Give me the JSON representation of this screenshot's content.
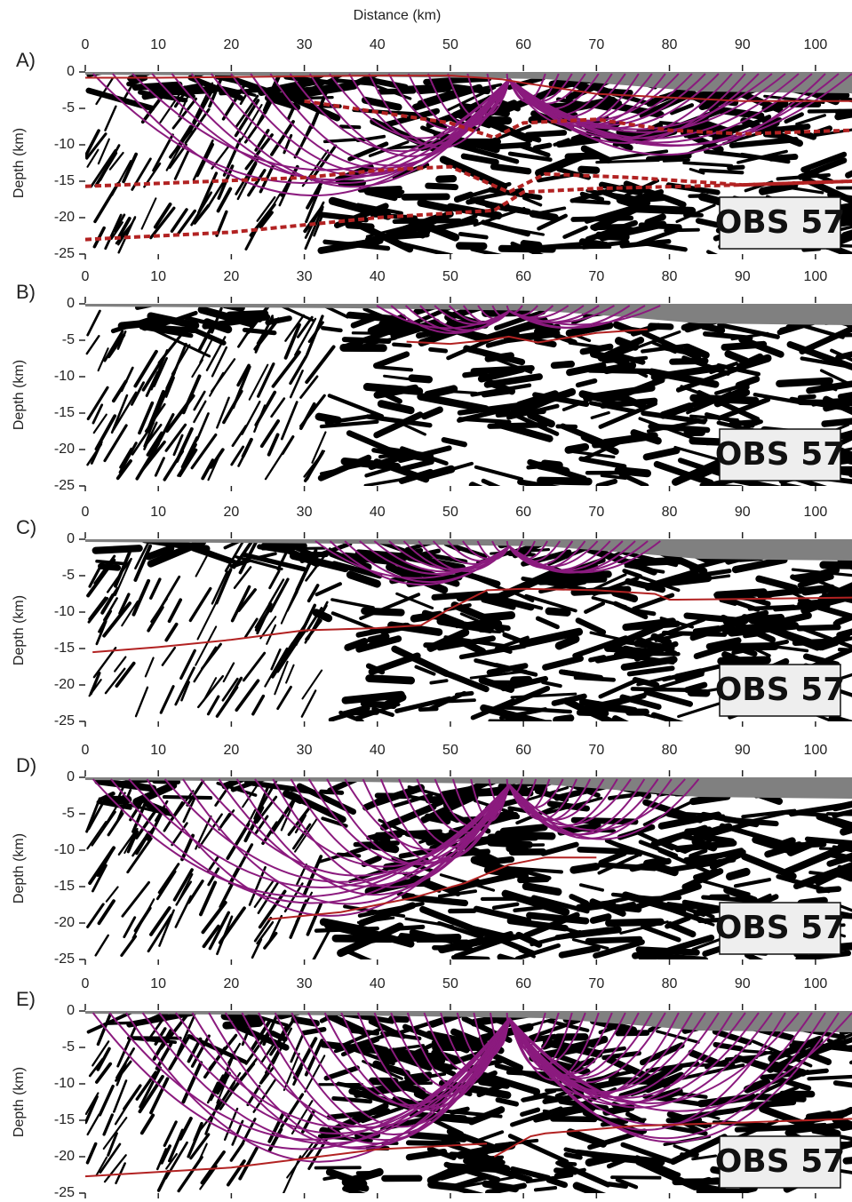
{
  "chart_data": [
    {
      "type": "line",
      "title": "Distance (km)",
      "panel_label": "A)",
      "ylabel": "Depth (km)",
      "box_label": "OBS 57",
      "xlim": [
        0,
        105
      ],
      "xticks": [
        0,
        10,
        20,
        30,
        40,
        50,
        60,
        70,
        80,
        90,
        100
      ],
      "ylim": [
        -25,
        0
      ],
      "yticks": [
        0,
        -5,
        -10,
        -15,
        -20,
        -25
      ],
      "series": [
        {
          "color": "#b22222",
          "dashed": false,
          "x": [
            0,
            10,
            20,
            30,
            40,
            50,
            57,
            60,
            70,
            80,
            90,
            105
          ],
          "values": [
            -0.8,
            -0.8,
            -0.7,
            -0.6,
            -0.5,
            -0.5,
            -1,
            -1.5,
            -3,
            -3.5,
            -4,
            -4
          ]
        },
        {
          "color": "#b22222",
          "dashed": true,
          "x": [
            30,
            40,
            50,
            56,
            60,
            70,
            80,
            90,
            105
          ],
          "values": [
            -4,
            -5.5,
            -7,
            -9,
            -7,
            -6.5,
            -8,
            -8.5,
            -8
          ]
        },
        {
          "color": "#b22222",
          "dashed": true,
          "x": [
            0,
            30,
            40,
            50,
            58,
            63,
            75,
            90,
            105
          ],
          "values": [
            -15.7,
            -14.5,
            -13.5,
            -13,
            -16.5,
            -14,
            -14.5,
            -15.5,
            -15
          ]
        },
        {
          "color": "#b22222",
          "dashed": true,
          "x": [
            0,
            20,
            40,
            56,
            60,
            70,
            90,
            105
          ],
          "values": [
            -23,
            -22,
            -20,
            -19,
            -16.5,
            -16,
            -15.5,
            -15
          ]
        }
      ]
    },
    {
      "type": "line",
      "panel_label": "B)",
      "ylabel": "Depth (km)",
      "box_label": "OBS 57",
      "xlim": [
        0,
        105
      ],
      "xticks": [
        0,
        10,
        20,
        30,
        40,
        50,
        60,
        70,
        80,
        90,
        100
      ],
      "ylim": [
        -25,
        0
      ],
      "yticks": [
        0,
        -5,
        -10,
        -15,
        -20,
        -25
      ],
      "series": [
        {
          "color": "#b22222",
          "dashed": false,
          "x": [
            44,
            50,
            55,
            58,
            62,
            70,
            77
          ],
          "values": [
            -5.2,
            -5.5,
            -5,
            -4.5,
            -5.3,
            -4,
            -3.5
          ]
        }
      ]
    },
    {
      "type": "line",
      "panel_label": "C)",
      "ylabel": "Depth (km)",
      "box_label": "OBS 57",
      "xlim": [
        0,
        105
      ],
      "xticks": [
        0,
        10,
        20,
        30,
        40,
        50,
        60,
        70,
        80,
        90,
        100
      ],
      "ylim": [
        -25,
        0
      ],
      "yticks": [
        0,
        -5,
        -10,
        -15,
        -20,
        -25
      ],
      "series": [
        {
          "color": "#b22222",
          "dashed": false,
          "x": [
            1,
            10,
            20,
            30,
            40,
            46,
            50,
            55,
            60,
            70,
            78,
            80,
            90,
            105
          ],
          "values": [
            -15.5,
            -14.8,
            -13.8,
            -12.5,
            -12.2,
            -11.8,
            -9.5,
            -7,
            -6.8,
            -7,
            -7.5,
            -8.3,
            -8.2,
            -8
          ]
        }
      ]
    },
    {
      "type": "line",
      "panel_label": "D)",
      "ylabel": "Depth (km)",
      "box_label": "OBS 57",
      "xlim": [
        0,
        105
      ],
      "xticks": [
        0,
        10,
        20,
        30,
        40,
        50,
        60,
        70,
        80,
        90,
        100
      ],
      "ylim": [
        -25,
        0
      ],
      "yticks": [
        0,
        -5,
        -10,
        -15,
        -20,
        -25
      ],
      "series": [
        {
          "color": "#b22222",
          "dashed": false,
          "x": [
            25,
            35,
            45,
            52,
            58,
            63,
            70
          ],
          "values": [
            -19.5,
            -18.5,
            -16.5,
            -14.5,
            -12,
            -11,
            -11
          ]
        }
      ]
    },
    {
      "type": "line",
      "panel_label": "E)",
      "ylabel": "Depth (km)",
      "box_label": "OBS 57",
      "xlim": [
        0,
        105
      ],
      "xticks": [
        0,
        10,
        20,
        30,
        40,
        50,
        60,
        70,
        80,
        90,
        100
      ],
      "ylim": [
        -25,
        0
      ],
      "yticks": [
        0,
        -5,
        -10,
        -15,
        -20,
        -25
      ],
      "series": [
        {
          "color": "#b22222",
          "dashed": false,
          "x": [
            0,
            20,
            40,
            55,
            null,
            56,
            61,
            63,
            75,
            90,
            105
          ],
          "values": [
            -22.7,
            -21.5,
            -19,
            -18.2,
            null,
            -20,
            -17.2,
            -16.8,
            -15.8,
            -15.3,
            -14.8
          ]
        }
      ]
    }
  ]
}
